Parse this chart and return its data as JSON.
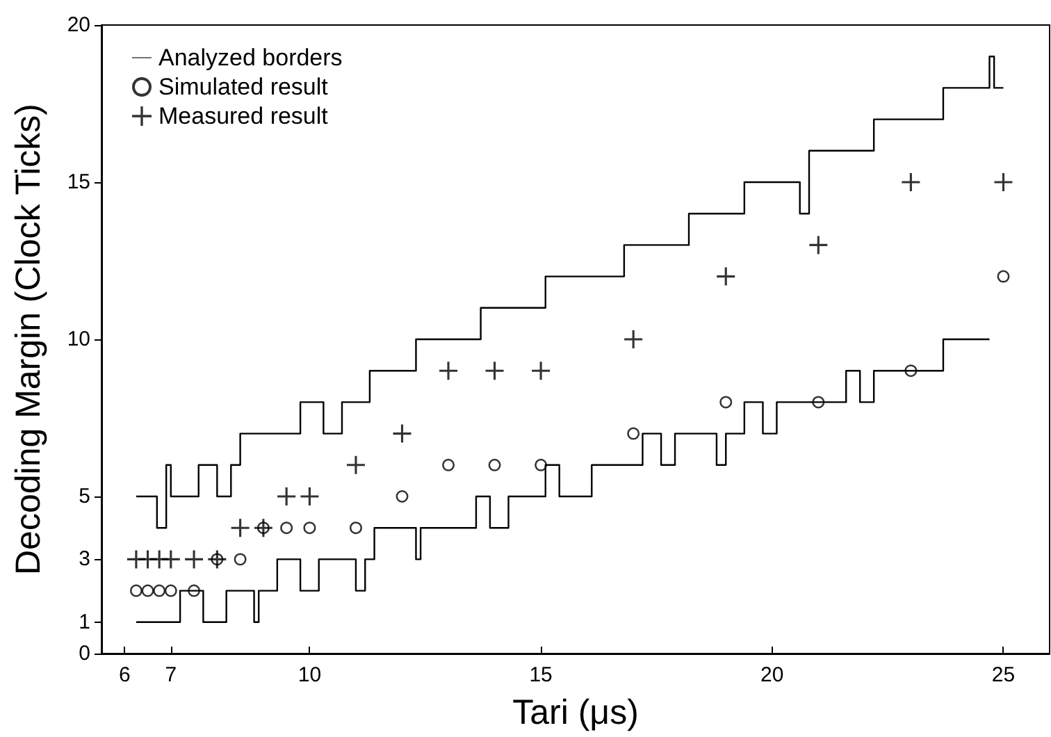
{
  "chart_data": {
    "type": "scatter",
    "xlabel": "Tari (μs)",
    "ylabel": "Decoding Margin (Clock Ticks)",
    "xlim": [
      5.5,
      26
    ],
    "xticks": [
      6,
      7,
      10,
      15,
      20,
      25
    ],
    "ylim": [
      0,
      20
    ],
    "yticks": [
      0,
      1,
      3,
      5,
      10,
      15,
      20
    ],
    "grid": false,
    "legend": "top left",
    "series": [
      {
        "name": "Analyzed borders",
        "type": "step",
        "marker": "none",
        "color": "#000000",
        "x": [
          6.25,
          6.7,
          6.9,
          7.0,
          7.6,
          8.0,
          8.3,
          8.5,
          9.8,
          10.3,
          10.7,
          11.3,
          12.3,
          13.7,
          15.1,
          16.8,
          18.2,
          19.4,
          20.6,
          20.8,
          22.2,
          23.7,
          24.7,
          24.8,
          25.0
        ],
        "values": [
          5,
          4,
          6,
          5,
          6,
          5,
          6,
          7,
          8,
          7,
          8,
          9,
          10,
          11,
          12,
          13,
          14,
          15,
          14,
          16,
          17,
          18,
          19,
          18,
          18
        ]
      },
      {
        "type": "step",
        "marker": "none",
        "color": "#000000",
        "x": [
          6.25,
          7.2,
          7.7,
          8.2,
          8.8,
          8.9,
          9.3,
          9.8,
          10.2,
          11.0,
          11.2,
          11.4,
          12.3,
          12.4,
          13.6,
          13.9,
          14.3,
          15.1,
          15.4,
          16.1,
          17.2,
          17.6,
          17.9,
          18.8,
          19.0,
          19.4,
          19.8,
          20.1,
          21.6,
          21.9,
          22.2,
          23.7,
          24.7
        ],
        "values": [
          1,
          2,
          1,
          2,
          1,
          2,
          3,
          2,
          3,
          2,
          3,
          4,
          3,
          4,
          5,
          4,
          5,
          6,
          5,
          6,
          7,
          6,
          7,
          6,
          7,
          8,
          7,
          8,
          9,
          8,
          9,
          10,
          10
        ]
      },
      {
        "name": "Simulated result",
        "type": "scatter",
        "marker": "circle",
        "color": "#000000",
        "x": [
          6.25,
          6.5,
          6.75,
          7,
          7.5,
          8,
          8.5,
          9,
          9.5,
          10,
          11,
          12,
          13,
          14,
          15,
          17,
          19,
          21,
          23,
          25
        ],
        "values": [
          2,
          2,
          2,
          2,
          2,
          3,
          3,
          4,
          4,
          4,
          4,
          5,
          6,
          6,
          6,
          7,
          8,
          8,
          9,
          12
        ]
      },
      {
        "name": "Measured result",
        "type": "scatter",
        "marker": "cross",
        "color": "#000000",
        "x": [
          6.25,
          6.5,
          6.75,
          7,
          7.5,
          8,
          8.5,
          9,
          9.5,
          10,
          11,
          12,
          13,
          14,
          15,
          17,
          19,
          21,
          23,
          25
        ],
        "values": [
          3,
          3,
          3,
          3,
          3,
          3,
          4,
          4,
          5,
          5,
          6,
          7,
          9,
          9,
          9,
          10,
          12,
          13,
          15,
          15
        ]
      }
    ]
  }
}
